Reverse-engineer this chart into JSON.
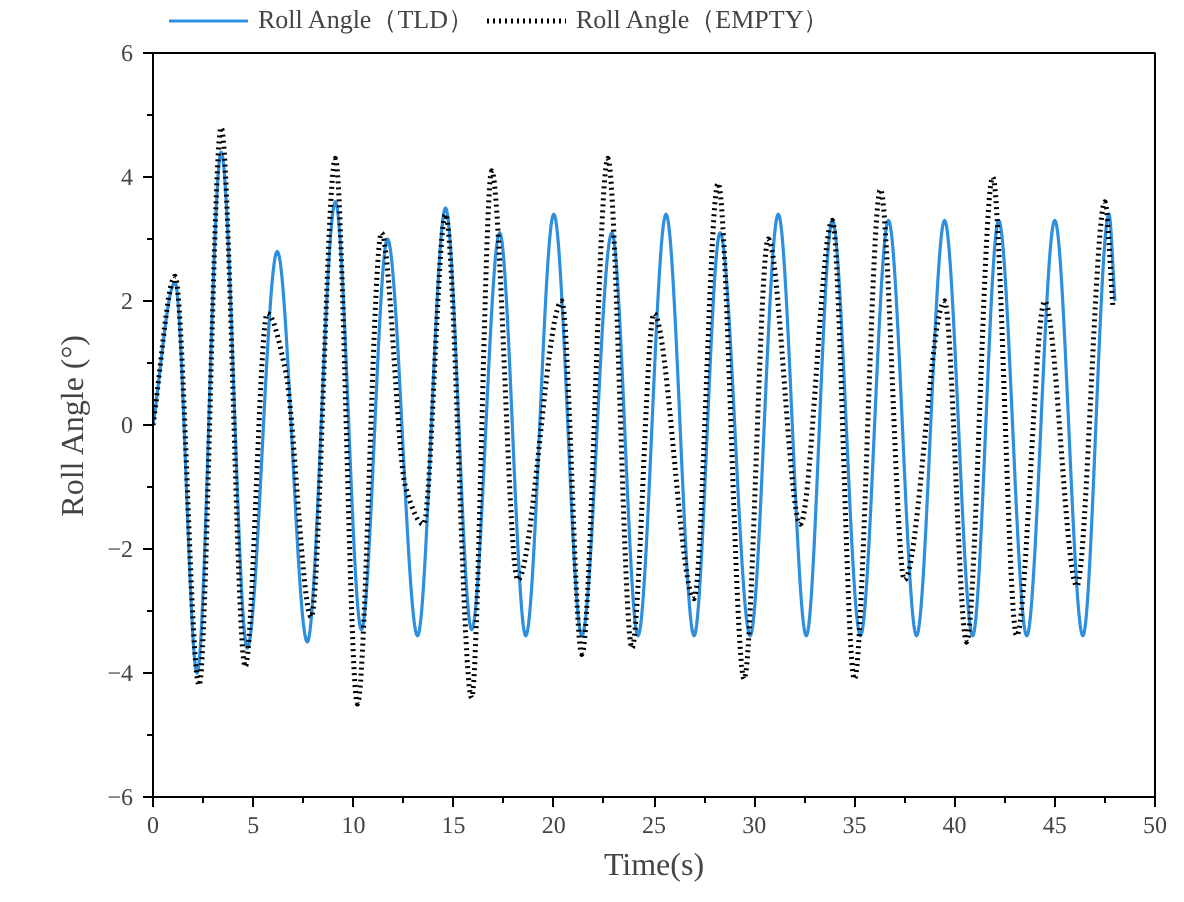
{
  "chart_data": {
    "type": "line",
    "xlabel": "Time(s)",
    "ylabel": "Roll Angle (°)",
    "xlim": [
      0,
      50
    ],
    "ylim": [
      -6,
      6
    ],
    "xticks": [
      0,
      5,
      10,
      15,
      20,
      25,
      30,
      35,
      40,
      45,
      50
    ],
    "yticks": [
      -6,
      -4,
      -2,
      0,
      2,
      4,
      6
    ],
    "grid": false,
    "legend": "top",
    "marker": "none",
    "series": [
      {
        "name": "Roll Angle（TLD）",
        "color": "#2e8fdf",
        "line_style": "solid",
        "x": [
          0,
          1.1,
          2.2,
          3.4,
          4.7,
          6.2,
          7.7,
          9.1,
          10.4,
          11.7,
          13.2,
          14.6,
          15.9,
          17.3,
          18.6,
          20.0,
          21.4,
          22.9,
          24.2,
          25.6,
          27.0,
          28.3,
          29.8,
          31.2,
          32.6,
          33.9,
          35.3,
          36.7,
          38.1,
          39.5,
          40.9,
          42.2,
          43.6,
          45.0,
          46.4,
          47.7,
          48.0
        ],
        "values": [
          0,
          2.3,
          -4.0,
          4.4,
          -3.6,
          2.8,
          -3.5,
          3.6,
          -3.3,
          3.0,
          -3.4,
          3.5,
          -3.3,
          3.1,
          -3.4,
          3.4,
          -3.4,
          3.1,
          -3.4,
          3.4,
          -3.4,
          3.1,
          -3.4,
          3.4,
          -3.4,
          3.3,
          -3.4,
          3.3,
          -3.4,
          3.3,
          -3.4,
          3.3,
          -3.4,
          3.3,
          -3.4,
          3.4,
          2.0
        ]
      },
      {
        "name": "Roll Angle（EMPTY）",
        "color": "#000000",
        "line_style": "dotted",
        "x": [
          0,
          1.1,
          2.3,
          3.4,
          4.6,
          5.7,
          6.6,
          7.9,
          9.1,
          10.2,
          11.4,
          12.6,
          13.5,
          14.6,
          15.9,
          16.9,
          18.2,
          20.4,
          21.4,
          22.7,
          23.9,
          25.0,
          27.0,
          28.2,
          29.5,
          30.7,
          32.3,
          33.9,
          35.0,
          36.3,
          37.5,
          39.5,
          40.6,
          41.9,
          43.1,
          44.5,
          46.1,
          47.5,
          47.9
        ],
        "values": [
          0,
          2.4,
          -4.2,
          4.8,
          -3.9,
          1.8,
          0.9,
          -3.1,
          4.3,
          -4.5,
          3.1,
          -1.0,
          -1.6,
          3.4,
          -4.4,
          4.1,
          -2.5,
          2.0,
          -3.7,
          4.3,
          -3.6,
          1.8,
          -2.8,
          3.9,
          -4.1,
          3.0,
          -1.6,
          3.3,
          -4.1,
          3.8,
          -2.5,
          2.0,
          -3.5,
          4.0,
          -3.4,
          2.0,
          -2.6,
          3.6,
          1.9
        ]
      }
    ]
  }
}
